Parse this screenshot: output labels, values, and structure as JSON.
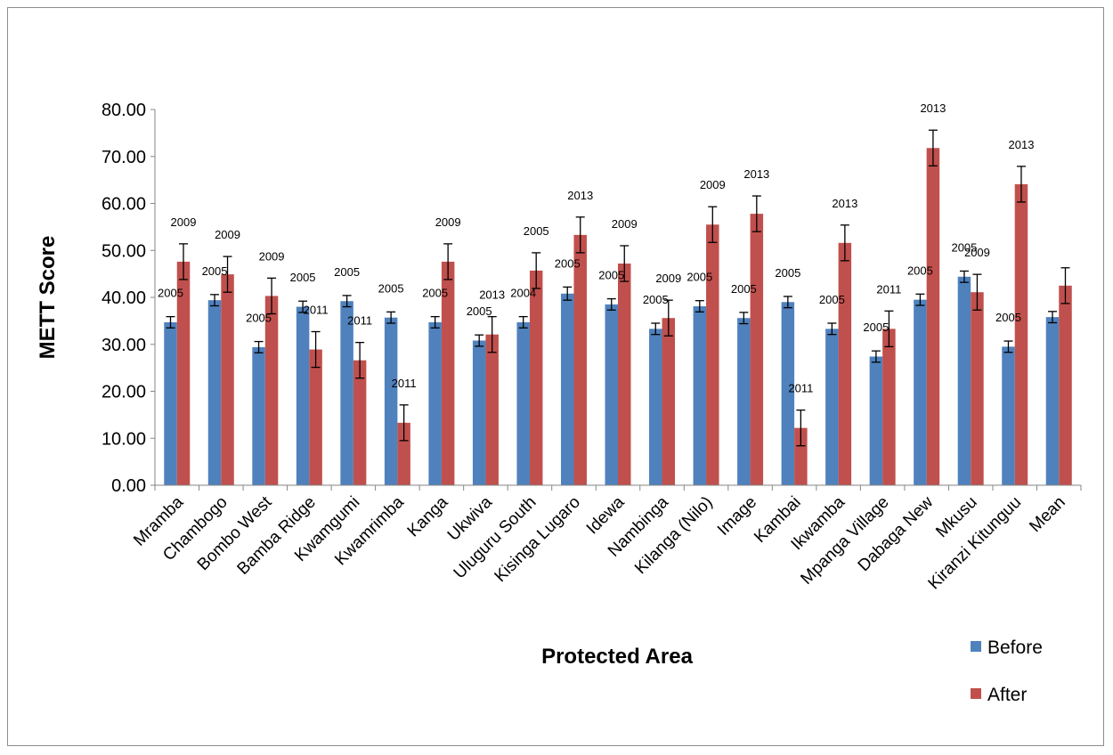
{
  "chart_data": {
    "type": "bar",
    "title": "",
    "xlabel": "Protected Area",
    "ylabel": "METT Score",
    "ylim": [
      0,
      80
    ],
    "yticks": [
      "0.00",
      "10.00",
      "20.00",
      "30.00",
      "40.00",
      "50.00",
      "60.00",
      "70.00",
      "80.00"
    ],
    "grid": false,
    "legend_position": "bottom-right",
    "categories": [
      "Mramba",
      "Chambogo",
      "Bombo West",
      "Bamba Ridge",
      "Kwamgumi",
      "Kwamrimba",
      "Kanga",
      "Ukwiva",
      "Uluguru South",
      "Kisinga Lugaro",
      "Idewa",
      "Nambinga",
      "Kilanga (Nilo)",
      "Image",
      "Kambai",
      "Ikwamba",
      "Mpanga Village",
      "Dabaga New",
      "Mkusu",
      "Kiranzi Kitunguu",
      "Mean"
    ],
    "series": [
      {
        "name": "Before",
        "color": "#4F81BD",
        "values": [
          34.7,
          39.4,
          29.4,
          38.0,
          39.2,
          35.7,
          34.7,
          30.8,
          34.7,
          40.8,
          38.5,
          33.3,
          38.1,
          35.6,
          39.0,
          33.3,
          27.4,
          39.5,
          44.4,
          29.5,
          35.8
        ],
        "errors": [
          1.2,
          1.2,
          1.2,
          1.2,
          1.2,
          1.2,
          1.2,
          1.2,
          1.2,
          1.4,
          1.2,
          1.2,
          1.2,
          1.2,
          1.2,
          1.2,
          1.2,
          1.2,
          1.2,
          1.2,
          1.2
        ],
        "labels": [
          "2005",
          "2005",
          "2005",
          "2005",
          "2005",
          "2005",
          "2005",
          "2005",
          "2004",
          "2005",
          "2005",
          "2005",
          "2005",
          "2005",
          "2005",
          "2005",
          "2005",
          "2005",
          "2005",
          "2005",
          ""
        ]
      },
      {
        "name": "After",
        "color": "#C0504D",
        "values": [
          47.6,
          44.9,
          40.3,
          28.9,
          26.6,
          13.3,
          47.6,
          32.1,
          45.7,
          53.3,
          47.2,
          35.6,
          55.5,
          57.8,
          12.2,
          51.6,
          33.3,
          71.8,
          41.1,
          64.1,
          42.5
        ],
        "errors": [
          3.8,
          3.8,
          3.8,
          3.8,
          3.8,
          3.8,
          3.8,
          3.8,
          3.8,
          3.8,
          3.8,
          3.8,
          3.8,
          3.8,
          3.8,
          3.8,
          3.8,
          3.8,
          3.8,
          3.8,
          3.8
        ],
        "labels": [
          "2009",
          "2009",
          "2009",
          "2011",
          "2011",
          "2011",
          "2009",
          "2013",
          "2005",
          "2013",
          "2009",
          "2009",
          "2009",
          "2013",
          "2011",
          "2013",
          "2011",
          "2013",
          "2009",
          "2013",
          ""
        ]
      }
    ]
  }
}
